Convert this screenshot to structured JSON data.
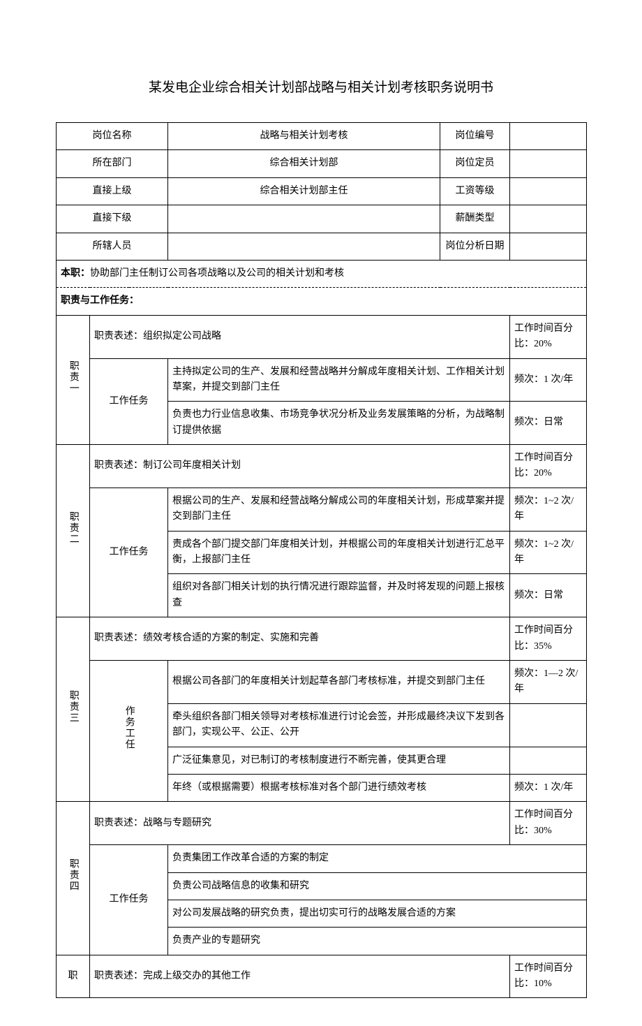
{
  "title": "某发电企业综合相关计划部战略与相关计划考核职务说明书",
  "header": {
    "r1c1": "岗位名称",
    "r1c2": "战略与相关计划考核",
    "r1c3": "岗位编号",
    "r1c4": "",
    "r2c1": "所在部门",
    "r2c2": "综合相关计划部",
    "r2c3": "岗位定员",
    "r2c4": "",
    "r3c1": "直接上级",
    "r3c2": "综合相关计划部主任",
    "r3c3": "工资等级",
    "r3c4": "",
    "r4c1": "直接下级",
    "r4c2": "",
    "r4c3": "薪酬类型",
    "r4c4": "",
    "r5c1": "所辖人员",
    "r5c2": "",
    "r5c3": "岗位分析日期",
    "r5c4": ""
  },
  "mainDutyLabel": "本职：",
  "mainDuty": "协助部门主任制订公司各项战略以及公司的相关计划和考核",
  "sectionTitle": "职责与工作任务：",
  "taskLabel": "工作任务",
  "taskLabel2": "作务工任",
  "d1": {
    "label": "职责一",
    "descLabel": "职责表述：",
    "desc": "组织拟定公司战略",
    "pct": "工作时间百分比：20%",
    "t1": "主持拟定公司的生产、发展和经营战略并分解成年度相关计划、工作相关计划草案，并提交到部门主任",
    "t1f": "频次：1 次/年",
    "t2": "负责也力行业信息收集、市场竞争状况分析及业务发展策略的分析，为战略制订提供依据",
    "t2f": "频次：日常"
  },
  "d2": {
    "label": "职责二",
    "descLabel": "职责表述：",
    "desc": "制订公司年度相关计划",
    "pct": "工作时间百分比：20%",
    "t1": "根据公司的生产、发展和经营战略分解成公司的年度相关计划，形成草案并提交到部门主任",
    "t1f": "频次：1~2 次/年",
    "t2": "责成各个部门提交部门年度相关计划，并根据公司的年度相关计划进行汇总平衡，上报部门主任",
    "t2f": "频次：1~2 次/年",
    "t3": "组织对各部门相关计划的执行情况进行跟踪监督，并及时将发现的问题上报核查",
    "t3f": "频次：日常"
  },
  "d3": {
    "label": "职责三",
    "descLabel": "职责表述：",
    "desc": "绩效考核合适的方案的制定、实施和完善",
    "pct": "工作时间百分比：35%",
    "t1": "根据公司各部门的年度相关计划起草各部门考核标准，并提交到部门主任",
    "t1f": "频次：1—2 次/年",
    "t2": "牵头组织各部门相关领导对考核标准进行讨论会签，并形成最终决议下发到各部门，实现公平、公正、公开",
    "t2f": "",
    "t3": "广泛征集意见，对已制订的考核制度进行不断完善，使其更合理",
    "t3f": "",
    "t4": "年终（或根据需要）根据考核标准对各个部门进行绩效考核",
    "t4f": "频次：1 次/年"
  },
  "d4": {
    "label": "职责四",
    "descLabel": "职责表述：",
    "desc": "战略与专题研究",
    "pct": "工作时间百分比：30%",
    "t1": "负责集团工作改革合适的方案的制定",
    "t2": "负责公司战略信息的收集和研究",
    "t3": "对公司发展战略的研究负责，提出切实可行的战略发展合适的方案",
    "t4": "负责产业的专题研究"
  },
  "d5": {
    "label": "职",
    "descLabel": "职责表述：",
    "desc": "完成上级交办的其他工作",
    "pct": "工作时间百分比：10%"
  }
}
